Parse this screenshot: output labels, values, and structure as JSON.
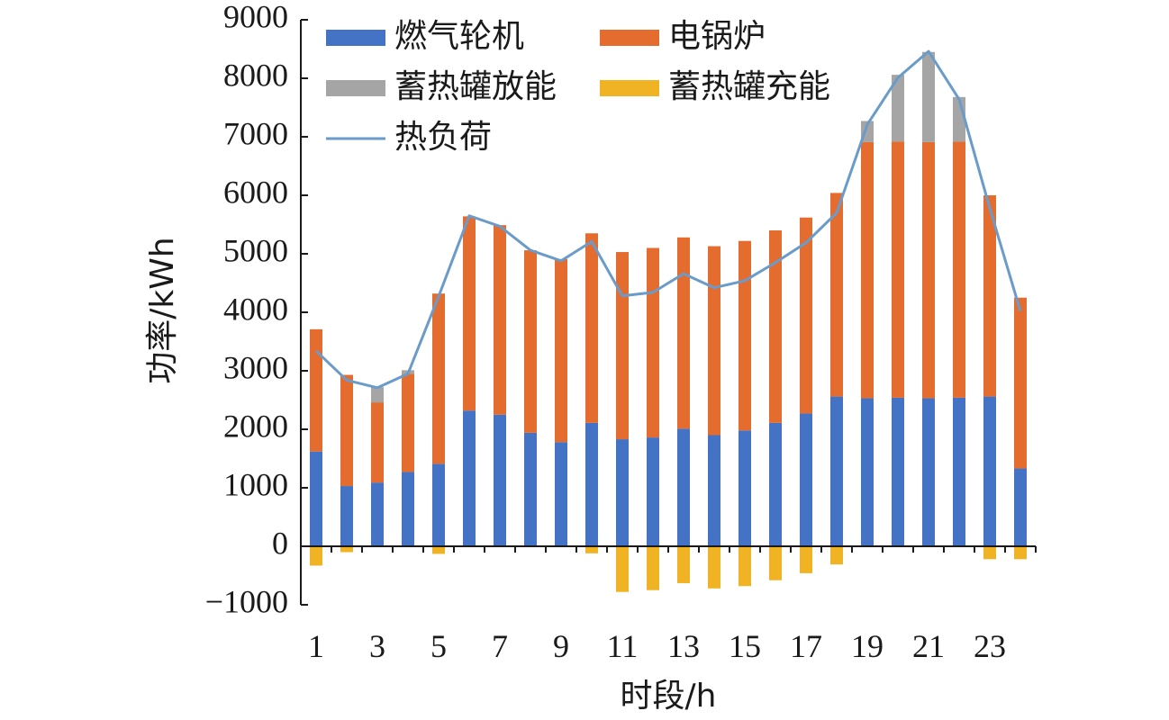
{
  "chart_data": {
    "type": "bar",
    "stacked": true,
    "title": "",
    "xlabel": "时段/h",
    "ylabel": "功率/kWh",
    "ylim": [
      -1000,
      9000
    ],
    "yticks": [
      -1000,
      0,
      1000,
      2000,
      3000,
      4000,
      5000,
      6000,
      7000,
      8000,
      9000
    ],
    "ytick_labels": [
      "−1000",
      "0",
      "1000",
      "2000",
      "3000",
      "4000",
      "5000",
      "6000",
      "7000",
      "8000",
      "9000"
    ],
    "categories": [
      1,
      2,
      3,
      4,
      5,
      6,
      7,
      8,
      9,
      10,
      11,
      12,
      13,
      14,
      15,
      16,
      17,
      18,
      19,
      20,
      21,
      22,
      23,
      24
    ],
    "xtick_labels": [
      "1",
      "3",
      "5",
      "7",
      "9",
      "11",
      "13",
      "15",
      "17",
      "19",
      "21",
      "23"
    ],
    "grid": false,
    "legend_position": "top",
    "series": [
      {
        "name": "燃气轮机",
        "kind": "bar",
        "color": "#4472C4",
        "values": [
          1620,
          1030,
          1090,
          1270,
          1410,
          2320,
          2250,
          1940,
          1780,
          2110,
          1830,
          1860,
          2010,
          1900,
          1980,
          2110,
          2270,
          2560,
          2530,
          2540,
          2530,
          2540,
          2560,
          1330
        ]
      },
      {
        "name": "电锅炉",
        "kind": "bar",
        "color": "#E46C2F",
        "values": [
          2090,
          1900,
          1370,
          1680,
          2910,
          3320,
          3240,
          3120,
          3130,
          3240,
          3200,
          3240,
          3270,
          3230,
          3240,
          3290,
          3350,
          3480,
          4380,
          4380,
          4380,
          4380,
          3440,
          2920
        ]
      },
      {
        "name": "蓄热罐放能",
        "kind": "bar",
        "color": "#A5A5A5",
        "values": [
          0,
          0,
          260,
          60,
          0,
          0,
          0,
          0,
          0,
          0,
          0,
          0,
          0,
          0,
          0,
          0,
          0,
          0,
          360,
          1140,
          1540,
          760,
          0,
          0
        ]
      },
      {
        "name": "蓄热罐充能",
        "kind": "bar",
        "color": "#F0B323",
        "values": [
          -330,
          -100,
          0,
          0,
          -130,
          0,
          0,
          0,
          0,
          -120,
          -780,
          -750,
          -630,
          -720,
          -680,
          -580,
          -460,
          -310,
          0,
          0,
          0,
          0,
          -220,
          -220
        ]
      },
      {
        "name": "热负荷",
        "kind": "line",
        "color": "#6A9BC9",
        "values": [
          3340,
          2840,
          2710,
          2950,
          4270,
          5650,
          5470,
          5060,
          4880,
          5210,
          4280,
          4340,
          4660,
          4420,
          4540,
          4850,
          5190,
          5700,
          7210,
          8010,
          8460,
          7640,
          5780,
          4020
        ]
      }
    ]
  }
}
